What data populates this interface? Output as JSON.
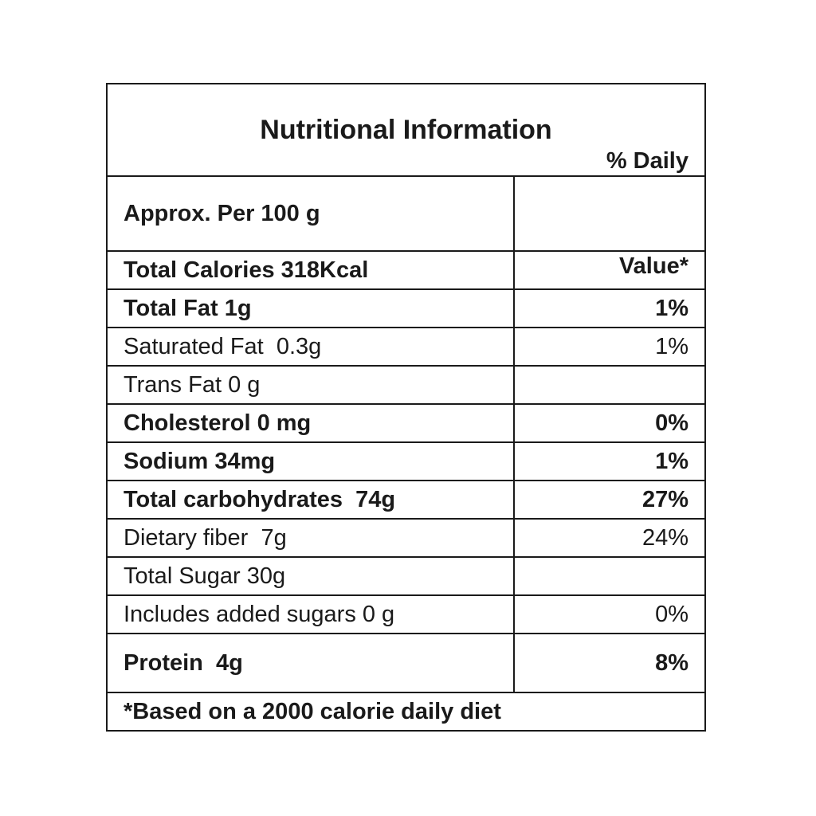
{
  "title": "Nutritional Information",
  "header": {
    "left": "Approx. Per 100 g",
    "right_line1": "% Daily",
    "right_line2": "Value*"
  },
  "rows": [
    {
      "label": "Total Calories 318Kcal",
      "value": "",
      "bold": true
    },
    {
      "label": "Total Fat 1g",
      "value": "1%",
      "bold": true
    },
    {
      "label": "Saturated Fat  0.3g",
      "value": "1%",
      "bold": false
    },
    {
      "label": "Trans Fat 0 g",
      "value": "",
      "bold": false
    },
    {
      "label": "Cholesterol 0 mg",
      "value": "0%",
      "bold": true
    },
    {
      "label": "Sodium 34mg",
      "value": "1%",
      "bold": true
    },
    {
      "label": "Total carbohydrates  74g",
      "value": "27%",
      "bold": true
    },
    {
      "label": "Dietary fiber  7g",
      "value": "24%",
      "bold": false
    },
    {
      "label": "Total Sugar 30g",
      "value": "",
      "bold": false
    },
    {
      "label": "Includes added sugars 0 g",
      "value": "0%",
      "bold": false
    },
    {
      "label": "Protein  4g",
      "value": "8%",
      "bold": true
    }
  ],
  "footnote": "*Based on a 2000 calorie daily diet"
}
